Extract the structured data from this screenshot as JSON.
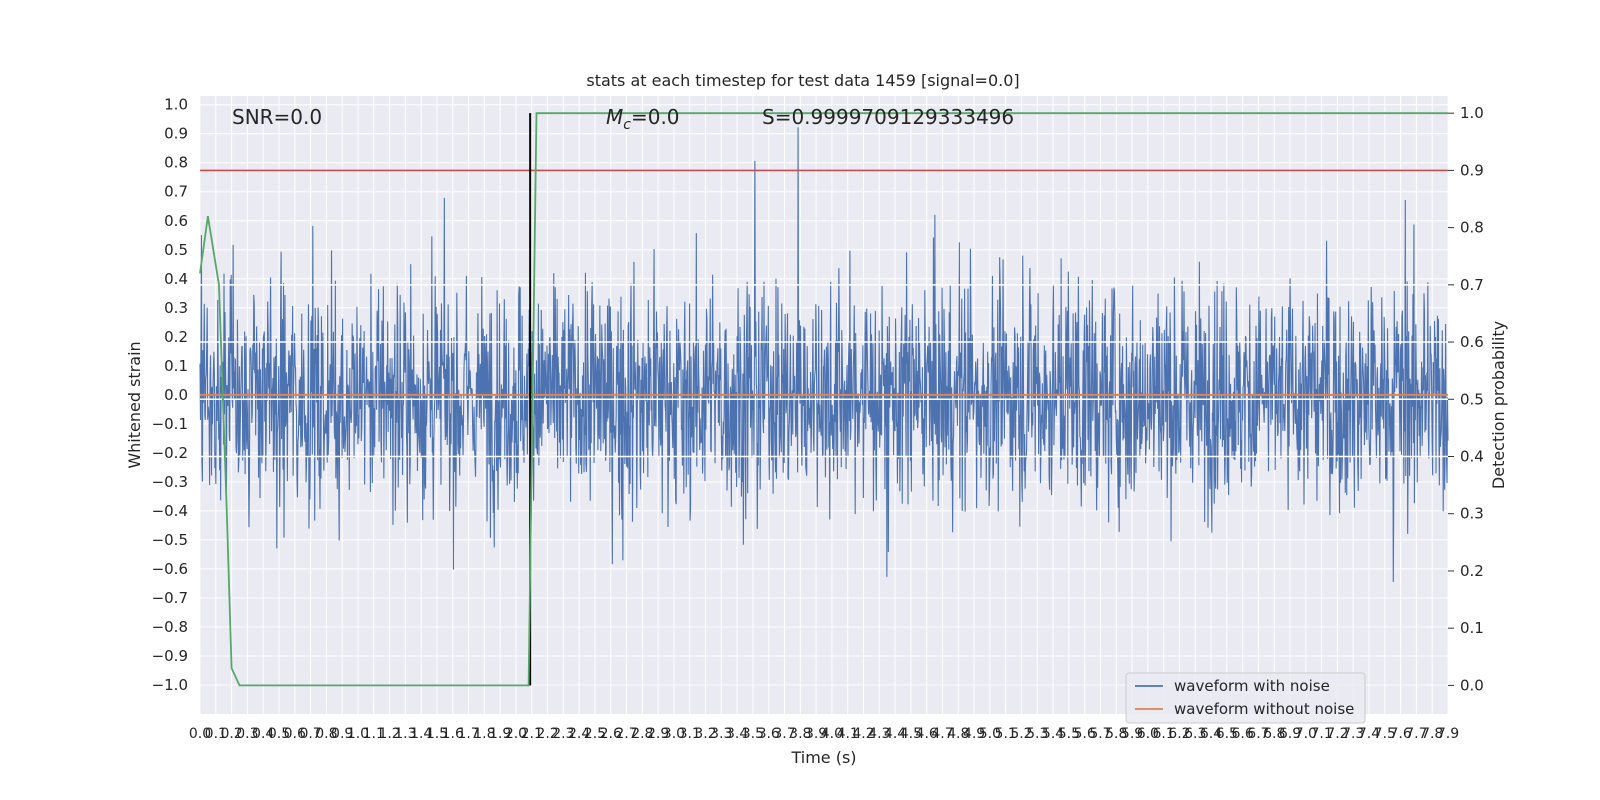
{
  "chart_data": {
    "type": "line",
    "title": "stats at each timestep for test data 1459 [signal=0.0]",
    "xlabel": "Time (s)",
    "ylabel": "Whitened strain",
    "y2label": "Detection probability",
    "xlim": [
      0.0,
      7.9
    ],
    "ylim": [
      -1.1,
      1.03
    ],
    "y2lim": [
      -0.05,
      1.03
    ],
    "x_ticks": [
      "0.0",
      "0.1",
      "0.2",
      "0.3",
      "0.4",
      "0.5",
      "0.6",
      "0.7",
      "0.8",
      "0.9",
      "1.0",
      "1.1",
      "1.2",
      "1.3",
      "1.4",
      "1.5",
      "1.6",
      "1.7",
      "1.8",
      "1.9",
      "2.0",
      "2.1",
      "2.2",
      "2.3",
      "2.4",
      "2.5",
      "2.6",
      "2.7",
      "2.8",
      "2.9",
      "3.0",
      "3.1",
      "3.2",
      "3.3",
      "3.4",
      "3.5",
      "3.6",
      "3.7",
      "3.8",
      "3.9",
      "4.0",
      "4.1",
      "4.2",
      "4.3",
      "4.4",
      "4.5",
      "4.6",
      "4.7",
      "4.8",
      "4.9",
      "5.0",
      "5.1",
      "5.2",
      "5.3",
      "5.4",
      "5.5",
      "5.6",
      "5.7",
      "5.8",
      "5.9",
      "6.0",
      "6.1",
      "6.2",
      "6.3",
      "6.4",
      "6.5",
      "6.6",
      "6.7",
      "6.8",
      "6.9",
      "7.0",
      "7.1",
      "7.2",
      "7.3",
      "7.4",
      "7.5",
      "7.6",
      "7.7",
      "7.8",
      "7.9"
    ],
    "y_ticks": [
      "1.0",
      "0.9",
      "0.8",
      "0.7",
      "0.6",
      "0.5",
      "0.4",
      "0.3",
      "0.2",
      "0.1",
      "0.0",
      "-0.1",
      "-0.2",
      "-0.3",
      "-0.4",
      "-0.5",
      "-0.6",
      "-0.7",
      "-0.8",
      "-0.9",
      "-1.0"
    ],
    "y2_ticks": [
      "1.0",
      "0.9",
      "0.8",
      "0.7",
      "0.6",
      "0.5",
      "0.4",
      "0.3",
      "0.2",
      "0.1",
      "0.0"
    ],
    "annotations": {
      "snr": "SNR=0.0",
      "mc_symbol": "M",
      "mc_sub": "c",
      "mc_value": "=0.0",
      "s": "S=0.9999709129333496"
    },
    "grid": true,
    "legend_position": "lower-right",
    "series": [
      {
        "name": "waveform with noise",
        "color": "#4c72b0",
        "kind": "noise",
        "range": [
          -1.0,
          1.0
        ]
      },
      {
        "name": "waveform without noise",
        "color": "#dd8452",
        "values_const": 0.0
      },
      {
        "color": "#55a868",
        "axis": "right",
        "x": [
          0.0,
          0.05,
          0.12,
          0.17,
          0.2,
          0.25,
          2.0,
          2.08,
          2.13,
          7.9
        ],
        "values": [
          0.72,
          0.82,
          0.7,
          0.3,
          0.03,
          0.0,
          0.0,
          0.0,
          1.0,
          1.0
        ]
      },
      {
        "color": "#c44e52",
        "axis": "right",
        "values_const": 0.9
      },
      {
        "color": "#ffffff",
        "axis": "right",
        "values_const": [
          0.7,
          0.6,
          0.5,
          0.4
        ]
      }
    ],
    "vline": {
      "x": 2.09,
      "color": "#000000"
    },
    "colors": {
      "background": "#eaeaf2",
      "grid": "#ffffff"
    }
  }
}
